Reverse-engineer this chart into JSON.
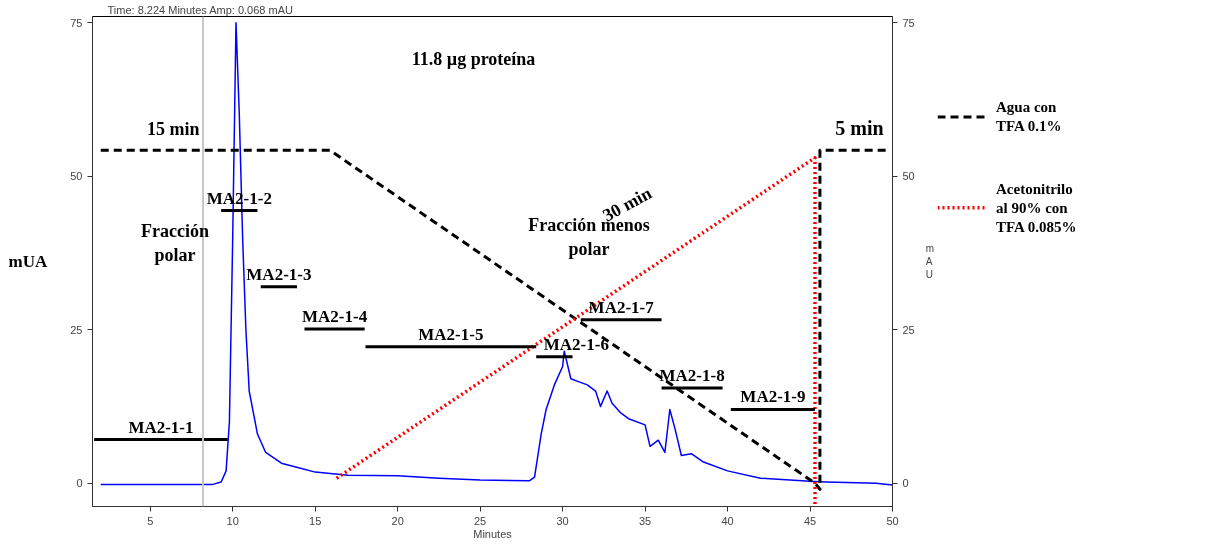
{
  "chart_data": {
    "type": "line",
    "xlabel": "Minutes",
    "ylabel": "mUA",
    "y2label": "mAU",
    "xlim": [
      1.5,
      50
    ],
    "xticks": [
      5,
      10,
      15,
      20,
      25,
      30,
      35,
      40,
      45,
      50
    ],
    "ylim": [
      -3.8,
      76
    ],
    "yticks": [
      0,
      25,
      50,
      75
    ],
    "y2lim": [
      -3.8,
      76
    ],
    "y2ticks": [
      0,
      25,
      50,
      75
    ],
    "grid": false,
    "legend": "right",
    "marker": "none",
    "ref_lines": [
      {
        "axis": "x",
        "value": 8.2,
        "label": null,
        "color": "#c8c8c8"
      }
    ],
    "annotations": [
      "Time:   8.224 Minutes   Amp:     0.068 mAU",
      "11.8 µg proteína",
      "15 min",
      "5 min",
      "30 min",
      "Fracción\npolar",
      "Fracción menos\npolar"
    ],
    "series": [
      {
        "color": "#0000ff",
        "line_style": "solid",
        "x": [
          2,
          8.8,
          9.3,
          9.6,
          9.8,
          10.0,
          10.2,
          10.4,
          10.6,
          10.8,
          11.0,
          11.5,
          12,
          13,
          14,
          15,
          17,
          20,
          22.5,
          25,
          28,
          28.3,
          28.7,
          29,
          29.5,
          30,
          30.1,
          30.5,
          31,
          31.5,
          32,
          32.3,
          32.7,
          33,
          33.5,
          34,
          35,
          35.3,
          35.8,
          36.2,
          36.5,
          36.8,
          37.2,
          37.8,
          38.5,
          40,
          42,
          45,
          46,
          49,
          50
        ],
        "values": [
          -0.2,
          -0.2,
          0.2,
          2,
          10,
          40,
          75,
          60,
          40,
          25,
          15,
          8,
          5,
          3.2,
          2.5,
          1.8,
          1.3,
          1.2,
          0.8,
          0.5,
          0.4,
          1,
          8,
          12,
          16,
          19,
          21.5,
          17,
          16.5,
          16,
          15,
          12.5,
          15,
          13,
          11.5,
          10.5,
          9.5,
          6,
          7,
          5,
          12,
          9,
          4.5,
          4.8,
          3.5,
          2,
          0.8,
          0.3,
          0.2,
          0,
          -0.3
        ]
      },
      {
        "name": "Agua con\nTFA 0.1%",
        "color": "#000000",
        "line_style": "dashed",
        "x": [
          2,
          15.9,
          45.3,
          45.6,
          45.6,
          49.6
        ],
        "values": [
          54.2,
          54.2,
          0,
          -1,
          54.2,
          54.2
        ]
      },
      {
        "name": "Acetonitrilo\nal 90% con\nTFA 0.085%",
        "color": "#ff0000",
        "line_style": "dotted",
        "x": [
          16.3,
          45.3,
          45.3
        ],
        "values": [
          0.8,
          53,
          -3.8
        ]
      },
      {
        "name": "MA2-1-1",
        "color": "#000000",
        "line_style": "solid",
        "x": [
          1.6,
          9.7
        ],
        "values": [
          7.1,
          7.1
        ]
      },
      {
        "name": "MA2-1-2",
        "color": "#000000",
        "line_style": "solid",
        "x": [
          9.3,
          11.5
        ],
        "values": [
          44.4,
          44.4
        ]
      },
      {
        "name": "MA2-1-3",
        "color": "#000000",
        "line_style": "solid",
        "x": [
          11.7,
          13.9
        ],
        "values": [
          32.0,
          32.0
        ]
      },
      {
        "name": "MA2-1-4",
        "color": "#000000",
        "line_style": "solid",
        "x": [
          14.35,
          18.0
        ],
        "values": [
          25.1,
          25.1
        ]
      },
      {
        "name": "MA2-1-5",
        "color": "#000000",
        "line_style": "solid",
        "x": [
          18.05,
          28.4
        ],
        "values": [
          22.2,
          22.2
        ]
      },
      {
        "name": "MA2-1-6",
        "color": "#000000",
        "line_style": "solid",
        "x": [
          28.4,
          30.6
        ],
        "values": [
          20.6,
          20.6
        ]
      },
      {
        "name": "MA2-1-7",
        "color": "#000000",
        "line_style": "solid",
        "x": [
          31.1,
          36.0
        ],
        "values": [
          26.6,
          26.6
        ]
      },
      {
        "name": "MA2-1-8",
        "color": "#000000",
        "line_style": "solid",
        "x": [
          36.0,
          39.7
        ],
        "values": [
          15.5,
          15.5
        ]
      },
      {
        "name": "MA2-1-9",
        "color": "#000000",
        "line_style": "solid",
        "x": [
          40.2,
          45.3
        ],
        "values": [
          12.0,
          12.0
        ]
      }
    ]
  }
}
